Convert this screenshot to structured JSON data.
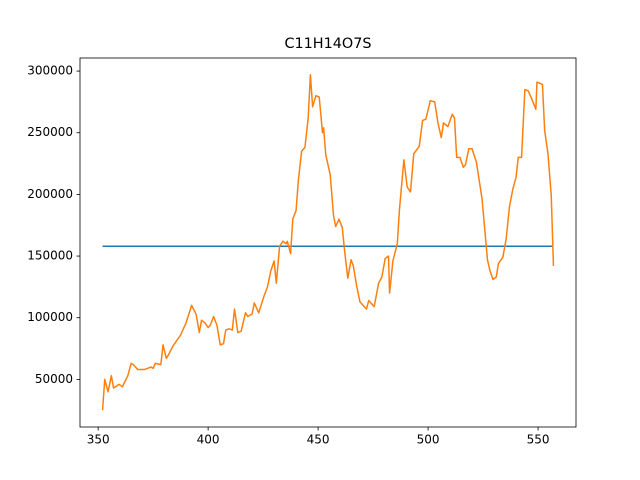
{
  "chart_data": {
    "type": "line",
    "title": "C11H14O7S",
    "xlim": [
      341.75,
      567.25
    ],
    "xticks": [
      350,
      400,
      450,
      500,
      550
    ],
    "ylim": [
      11400,
      310600
    ],
    "yticks": [
      50000,
      100000,
      150000,
      200000,
      250000,
      300000
    ],
    "series": [
      {
        "color": "#1f77b4",
        "x": [
          352,
          557
        ],
        "values": [
          158000,
          158000
        ]
      },
      {
        "color": "#ff7f0e",
        "x": [
          352,
          353,
          354.5,
          356,
          357,
          359.5,
          361,
          363.5,
          365,
          366,
          368,
          371,
          374,
          375,
          376,
          378.5,
          379.5,
          381,
          382,
          384,
          387.5,
          390,
          392.5,
          394.5,
          396,
          397,
          398.5,
          400,
          401,
          402.5,
          404,
          405.5,
          407,
          408,
          409.5,
          411,
          412,
          413.5,
          415,
          417,
          418,
          420,
          421,
          423,
          425.5,
          427,
          428.5,
          430,
          431,
          432.5,
          434,
          435.5,
          436,
          437.5,
          438.5,
          440,
          441,
          442.5,
          444,
          445.5,
          446.5,
          447.5,
          449,
          450.5,
          452,
          452.5,
          453.5,
          455.5,
          457,
          458,
          459.5,
          461,
          462,
          463.5,
          465,
          466,
          467.5,
          469,
          472,
          473,
          475.5,
          477.5,
          479,
          480.5,
          482,
          482.5,
          484,
          486,
          487,
          489,
          490.5,
          492,
          493.5,
          496,
          497.5,
          499,
          501,
          503,
          504.5,
          506,
          507,
          509,
          511,
          512,
          513,
          514.5,
          516,
          517,
          518.5,
          520,
          522,
          523,
          524.5,
          527,
          528,
          529.5,
          531,
          532,
          534,
          535.5,
          537,
          538.5,
          540,
          541,
          542.5,
          544,
          545.5,
          547,
          549,
          549.5,
          551,
          552,
          553,
          554.5,
          556,
          557
        ],
        "values": [
          25000,
          50000,
          40000,
          53000,
          43000,
          46000,
          44000,
          53000,
          63000,
          62000,
          58000,
          58000,
          60000,
          59000,
          63000,
          62000,
          78000,
          67000,
          70000,
          77000,
          86000,
          96000,
          110000,
          103000,
          88000,
          98000,
          96000,
          92000,
          94000,
          101000,
          94000,
          78000,
          79000,
          90000,
          91000,
          90000,
          107000,
          88000,
          89000,
          104000,
          101000,
          103000,
          112000,
          104000,
          118000,
          125000,
          138000,
          146000,
          128000,
          158000,
          162000,
          160000,
          162000,
          152000,
          180000,
          187000,
          211000,
          235000,
          238000,
          262000,
          297000,
          271000,
          280000,
          279000,
          250000,
          254000,
          232000,
          216000,
          183000,
          174000,
          180000,
          173000,
          155000,
          132000,
          147000,
          142000,
          126000,
          113000,
          107000,
          114000,
          109000,
          128000,
          133000,
          148000,
          150000,
          120000,
          146000,
          160000,
          188000,
          228000,
          206000,
          202000,
          233000,
          239000,
          260000,
          261000,
          276000,
          275000,
          258000,
          246000,
          258000,
          255000,
          265000,
          262000,
          230000,
          230000,
          222000,
          224000,
          237000,
          237000,
          226000,
          214000,
          197000,
          147000,
          139000,
          131000,
          133000,
          144000,
          149000,
          164000,
          190000,
          204000,
          214000,
          230000,
          230000,
          285000,
          284000,
          278000,
          269000,
          291000,
          290000,
          289000,
          252000,
          233000,
          199000,
          142000
        ]
      }
    ]
  }
}
